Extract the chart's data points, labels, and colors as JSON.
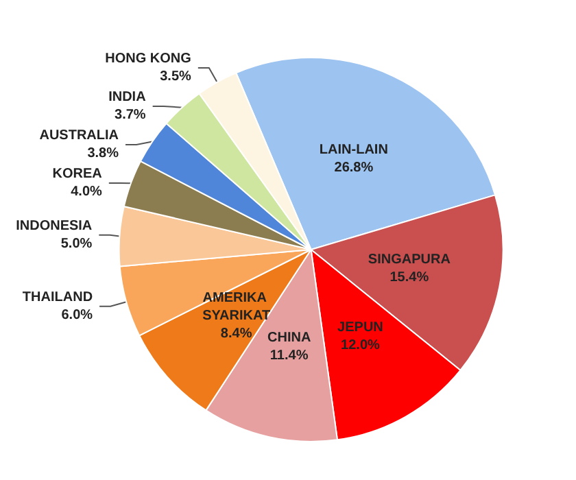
{
  "chart_data": {
    "type": "pie",
    "categories": [
      "LAIN-LAIN",
      "SINGAPURA",
      "JEPUN",
      "CHINA",
      "AMERIKA SYARIKAT",
      "THAILAND",
      "INDONESIA",
      "KOREA",
      "AUSTRALIA",
      "INDIA",
      "HONG KONG"
    ],
    "values": [
      26.8,
      15.4,
      12.0,
      11.4,
      8.4,
      6.0,
      5.0,
      4.0,
      3.8,
      3.7,
      3.5
    ],
    "value_labels": [
      "26.8%",
      "15.4%",
      "12.0%",
      "11.4%",
      "8.4%",
      "6.0%",
      "5.0%",
      "4.0%",
      "3.8%",
      "3.7%",
      "3.5%"
    ],
    "colors": [
      "#9dc3f0",
      "#c9504f",
      "#ff0000",
      "#e6a0a0",
      "#ee7a1a",
      "#f9a65a",
      "#fac898",
      "#8c7d50",
      "#4f86d9",
      "#cfe6a0",
      "#fdf5e2"
    ],
    "legend": false
  }
}
